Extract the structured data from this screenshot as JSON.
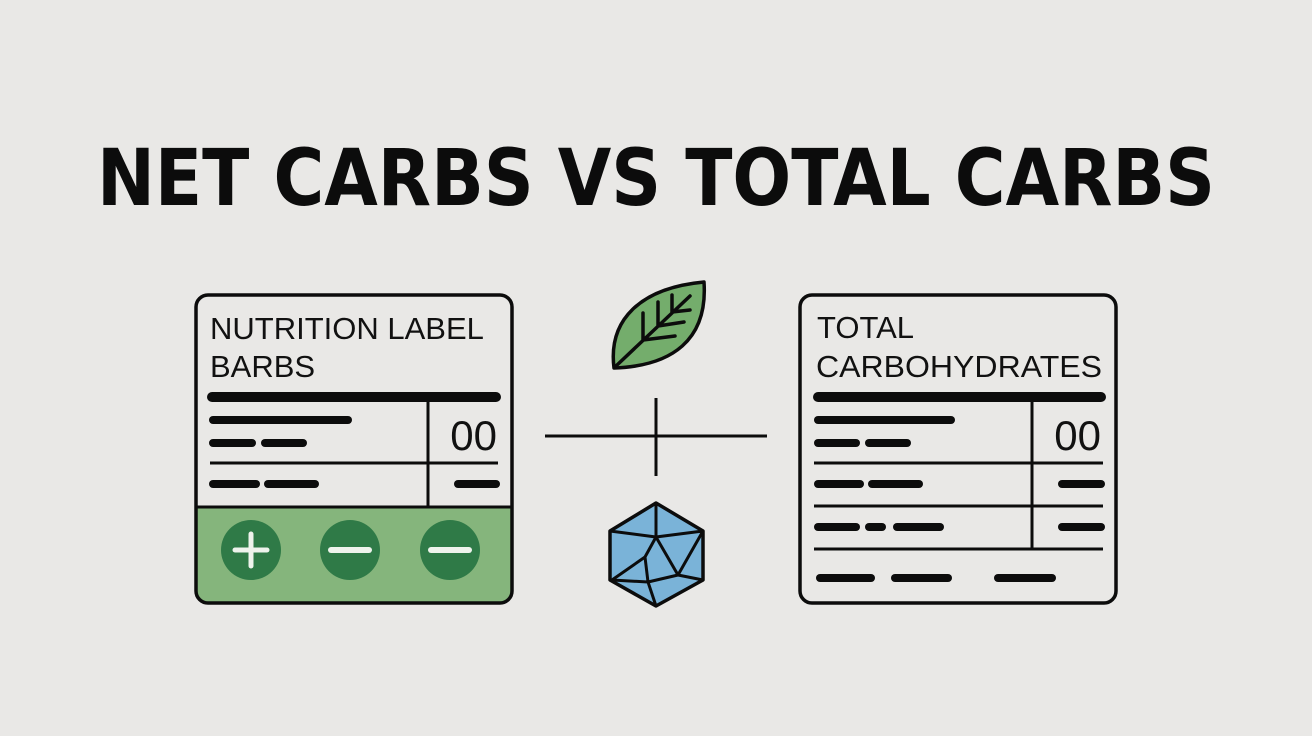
{
  "title": "NET CARBS VS TOTAL CARBS",
  "left_card": {
    "heading_line1": "NUTRITION LABEL",
    "heading_line2": "BARBS",
    "value": "00",
    "buttons": [
      "plus-icon",
      "minus-icon",
      "minus-icon"
    ]
  },
  "center": {
    "icons": [
      "leaf-icon",
      "plus-icon",
      "crystal-icon"
    ]
  },
  "right_card": {
    "heading_line1": "TOTAL",
    "heading_line2": "CARBOHYDRATES",
    "value": "00"
  },
  "colors": {
    "background": "#e9e8e6",
    "green_panel": "#85b57c",
    "green_circle": "#2f7a47",
    "leaf": "#74ad6c",
    "crystal": "#7ab3d8"
  }
}
